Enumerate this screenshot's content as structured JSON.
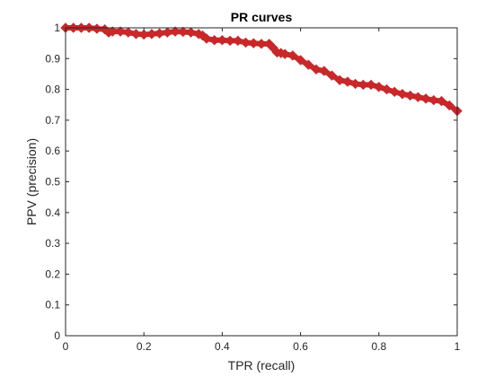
{
  "chart_data": {
    "type": "line",
    "title": "PR curves",
    "xlabel": "TPR (recall)",
    "ylabel": "PPV (precision)",
    "xlim": [
      0,
      1
    ],
    "ylim": [
      0,
      1
    ],
    "xticks": [
      0,
      0.2,
      0.4,
      0.6,
      0.8,
      1
    ],
    "xtick_labels": [
      "0",
      "0.2",
      "0.4",
      "0.6",
      "0.8",
      "1"
    ],
    "yticks": [
      0,
      0.1,
      0.2,
      0.3,
      0.4,
      0.5,
      0.6,
      0.7,
      0.8,
      0.9,
      1
    ],
    "ytick_labels": [
      "0",
      "0.1",
      "0.2",
      "0.3",
      "0.4",
      "0.5",
      "0.6",
      "0.7",
      "0.8",
      "0.9",
      "1"
    ],
    "grid": false,
    "series": [
      {
        "color": "#c8282a",
        "marker": "diamond",
        "x": [
          0.0,
          0.02,
          0.04,
          0.06,
          0.08,
          0.1,
          0.11,
          0.12,
          0.14,
          0.16,
          0.18,
          0.2,
          0.22,
          0.24,
          0.26,
          0.28,
          0.3,
          0.32,
          0.34,
          0.35,
          0.36,
          0.38,
          0.4,
          0.42,
          0.44,
          0.46,
          0.48,
          0.5,
          0.52,
          0.53,
          0.54,
          0.55,
          0.56,
          0.58,
          0.6,
          0.62,
          0.64,
          0.66,
          0.68,
          0.7,
          0.72,
          0.74,
          0.76,
          0.78,
          0.8,
          0.82,
          0.84,
          0.86,
          0.88,
          0.9,
          0.92,
          0.94,
          0.96,
          0.98,
          1.0
        ],
        "y": [
          1.0,
          1.0,
          1.0,
          1.0,
          0.997,
          0.995,
          0.985,
          0.988,
          0.988,
          0.985,
          0.98,
          0.978,
          0.98,
          0.982,
          0.985,
          0.988,
          0.987,
          0.985,
          0.98,
          0.975,
          0.965,
          0.96,
          0.96,
          0.958,
          0.958,
          0.952,
          0.95,
          0.948,
          0.948,
          0.935,
          0.92,
          0.918,
          0.915,
          0.91,
          0.895,
          0.88,
          0.865,
          0.86,
          0.845,
          0.83,
          0.825,
          0.818,
          0.815,
          0.815,
          0.808,
          0.8,
          0.792,
          0.785,
          0.78,
          0.775,
          0.77,
          0.765,
          0.762,
          0.748,
          0.73
        ]
      }
    ]
  }
}
